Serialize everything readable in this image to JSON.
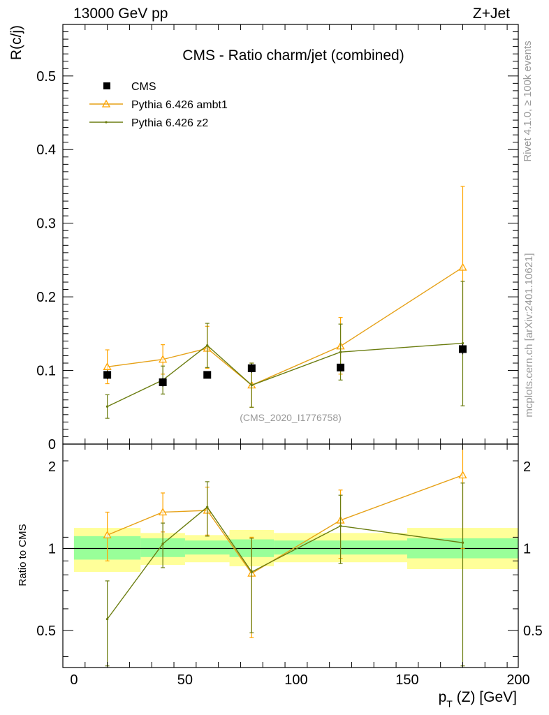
{
  "header": {
    "energy_label": "13000 GeV pp",
    "process_label": "Z+Jet"
  },
  "side_notes": {
    "rivet": "Rivet 4.1.0, ≥ 100k events",
    "mcplots": "mcplots.cern.ch [arXiv:2401.10621]"
  },
  "colors": {
    "data": "#000000",
    "ambt1": "#ffa500",
    "ambt1_line": "#e6a117",
    "z2": "#6b7d10",
    "band_inner": "#99ff99",
    "band_outer": "#ffff99"
  },
  "chart_data": [
    {
      "type": "scatter",
      "title": "CMS - Ratio charm/jet (combined)",
      "ylabel": "R(c/j)",
      "xlim": [
        -5,
        200
      ],
      "ylim": [
        0,
        0.57
      ],
      "yticks": [
        {
          "value": 0.1,
          "label": "0.1"
        },
        {
          "value": 0.2,
          "label": "0.2"
        },
        {
          "value": 0.3,
          "label": "0.3"
        },
        {
          "value": 0.4,
          "label": "0.4"
        },
        {
          "value": 0.5,
          "label": "0.5"
        },
        {
          "value": 0,
          "label": "0"
        }
      ],
      "watermark": "(CMS_2020_I1776758)",
      "legend": {
        "position": "top-left",
        "entries": [
          {
            "name": "CMS",
            "marker": "square",
            "color": "#000000"
          },
          {
            "name": "Pythia 6.426 ambt1",
            "marker": "triangle",
            "color": "#ffa500"
          },
          {
            "name": "Pythia 6.426 z2",
            "marker": "dot",
            "color": "#6b7d10"
          }
        ]
      },
      "series": [
        {
          "name": "CMS",
          "x": [
            15,
            40,
            60,
            80,
            120,
            175
          ],
          "y": [
            0.094,
            0.084,
            0.094,
            0.103,
            0.104,
            0.129
          ],
          "err": [
            0.006,
            0.006,
            0.004,
            0.006,
            0.005,
            0.007
          ]
        },
        {
          "name": "Pythia 6.426 ambt1",
          "x": [
            15,
            40,
            60,
            80,
            120,
            175
          ],
          "y": [
            0.105,
            0.115,
            0.13,
            0.08,
            0.133,
            0.24
          ],
          "ylo": [
            0.082,
            0.095,
            0.103,
            0.05,
            0.095,
            0.13
          ],
          "yhi": [
            0.128,
            0.135,
            0.16,
            0.11,
            0.172,
            0.35
          ]
        },
        {
          "name": "Pythia 6.426 z2",
          "x": [
            15,
            40,
            60,
            80,
            120,
            175
          ],
          "y": [
            0.051,
            0.087,
            0.134,
            0.08,
            0.125,
            0.137
          ],
          "ylo": [
            0.035,
            0.068,
            0.104,
            0.05,
            0.087,
            0.052
          ],
          "yhi": [
            0.067,
            0.106,
            0.164,
            0.11,
            0.163,
            0.221
          ]
        }
      ]
    },
    {
      "type": "line",
      "ylabel": "Ratio to CMS",
      "xlabel": "p_T (Z) [GeV]",
      "xlim": [
        -5,
        200
      ],
      "ylim": [
        0.365,
        2.42
      ],
      "yscale": "log",
      "xticks": [
        {
          "value": 0,
          "label": "0"
        },
        {
          "value": 50,
          "label": "50"
        },
        {
          "value": 100,
          "label": "100"
        },
        {
          "value": 150,
          "label": "150"
        },
        {
          "value": 200,
          "label": "200"
        }
      ],
      "yticks": [
        {
          "value": 0.5,
          "label": "0.5"
        },
        {
          "value": 1,
          "label": "1"
        },
        {
          "value": 2,
          "label": "2"
        }
      ],
      "bands": [
        {
          "x0": 0,
          "x1": 30,
          "inner": [
            0.91,
            1.11
          ],
          "outer": [
            0.82,
            1.19
          ]
        },
        {
          "x0": 30,
          "x1": 50,
          "inner": [
            0.93,
            1.09
          ],
          "outer": [
            0.87,
            1.14
          ]
        },
        {
          "x0": 50,
          "x1": 70,
          "inner": [
            0.95,
            1.07
          ],
          "outer": [
            0.89,
            1.12
          ]
        },
        {
          "x0": 70,
          "x1": 90,
          "inner": [
            0.93,
            1.08
          ],
          "outer": [
            0.86,
            1.17
          ]
        },
        {
          "x0": 90,
          "x1": 150,
          "inner": [
            0.95,
            1.07
          ],
          "outer": [
            0.89,
            1.14
          ]
        },
        {
          "x0": 150,
          "x1": 200,
          "inner": [
            0.92,
            1.09
          ],
          "outer": [
            0.84,
            1.19
          ]
        }
      ],
      "series": [
        {
          "name": "Pythia 6.426 ambt1",
          "x": [
            15,
            40,
            60,
            80,
            120,
            175
          ],
          "y": [
            1.12,
            1.36,
            1.38,
            0.81,
            1.27,
            1.86
          ],
          "ylo": [
            0.9,
            1.15,
            1.12,
            0.47,
            0.92,
            1.0
          ],
          "yhi": [
            1.36,
            1.6,
            1.68,
            1.1,
            1.64,
            2.72
          ]
        },
        {
          "name": "Pythia 6.426 z2",
          "x": [
            15,
            40,
            60,
            80,
            120,
            175
          ],
          "y": [
            0.55,
            1.04,
            1.42,
            0.82,
            1.21,
            1.05
          ],
          "ylo": [
            0.37,
            0.85,
            1.11,
            0.49,
            0.88,
            0.37
          ],
          "yhi": [
            0.76,
            1.24,
            1.76,
            1.09,
            1.57,
            1.74
          ]
        }
      ]
    }
  ]
}
